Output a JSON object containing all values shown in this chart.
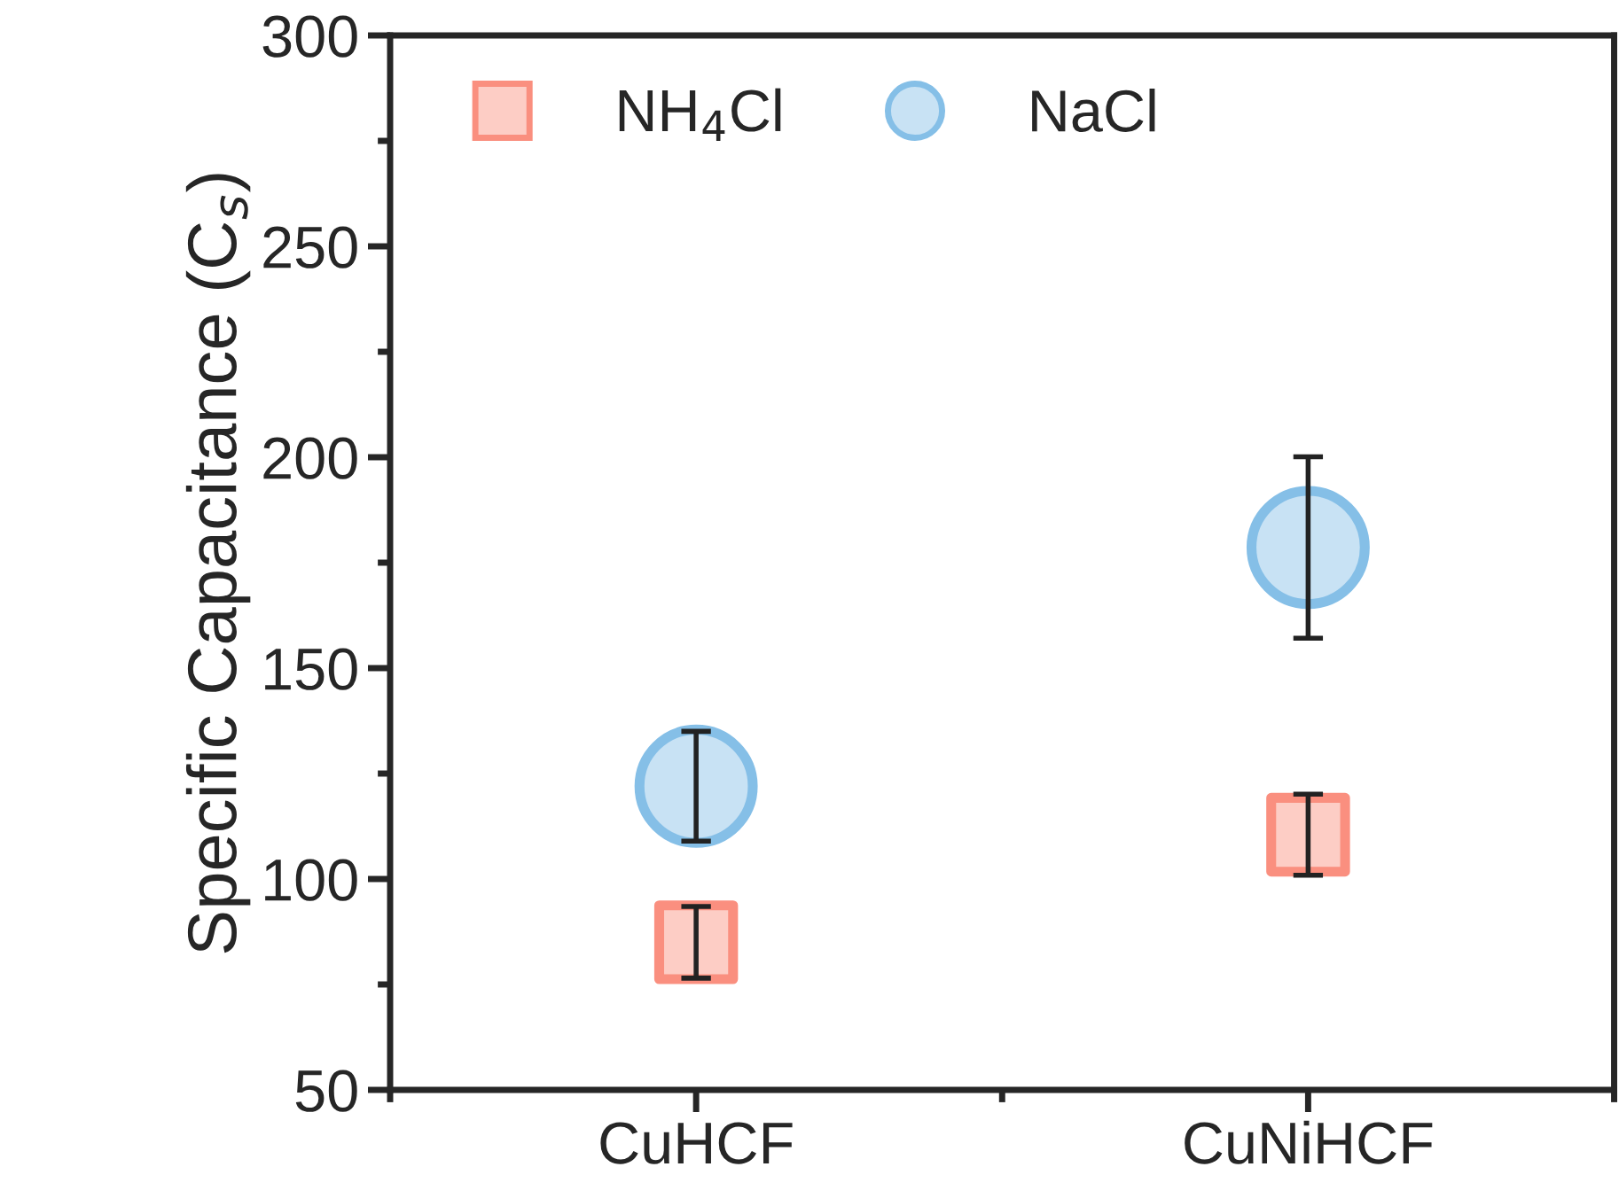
{
  "chart_data": {
    "type": "scatter",
    "ylabel": "Specific Capacitance (C$_{s}$)",
    "categories": [
      "CuHCF",
      "CuNiHCF"
    ],
    "series": [
      {
        "name": "NH$_{4}$Cl",
        "color": "#fa8f7f",
        "marker": "square",
        "values": [
          85,
          110.5
        ],
        "errors": [
          8.5,
          9.6
        ]
      },
      {
        "name": "NaCl",
        "color": "#85bfe7",
        "marker": "circle",
        "values": [
          122,
          178.6
        ],
        "errors": [
          13,
          21.5
        ]
      }
    ],
    "ylim": [
      50,
      300
    ],
    "yticks": [
      50,
      100,
      150,
      200,
      250,
      300
    ],
    "legend": "top left"
  }
}
